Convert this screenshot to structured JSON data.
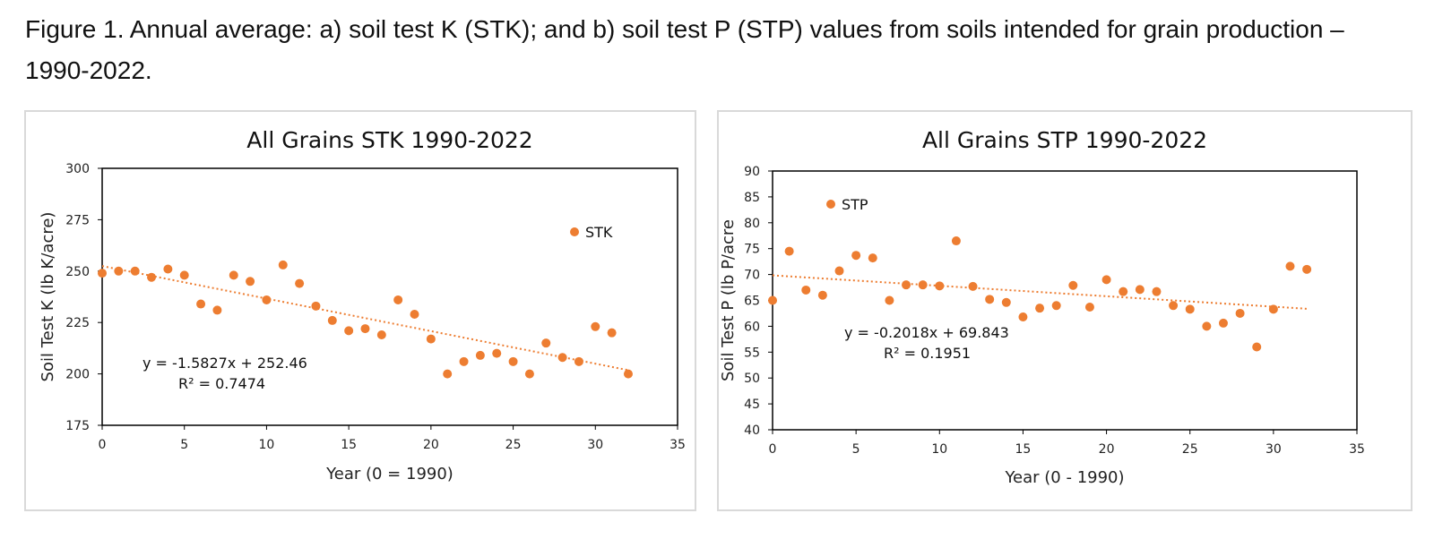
{
  "caption": "Figure 1. Annual average: a) soil test K (STK); and b) soil test P (STP) values from soils intended for grain production – 1990-2022.",
  "colors": {
    "marker": "#ED7D31",
    "axis": "#000000",
    "panel_border": "#d9d9d9"
  },
  "chart_data": [
    {
      "type": "scatter",
      "title": "All Grains STK 1990-2022",
      "xlabel": "Year (0 = 1990)",
      "ylabel": "Soil Test K (lb K/acre)",
      "xlim": [
        0,
        35
      ],
      "ylim": [
        175,
        300
      ],
      "xticks": [
        0,
        5,
        10,
        15,
        20,
        25,
        30,
        35
      ],
      "yticks": [
        175,
        200,
        225,
        250,
        275,
        300
      ],
      "legend": "top-right",
      "grid": false,
      "series": [
        {
          "name": "STK",
          "x": [
            0,
            1,
            2,
            3,
            4,
            5,
            6,
            7,
            8,
            9,
            10,
            11,
            12,
            13,
            14,
            15,
            16,
            17,
            18,
            19,
            20,
            21,
            22,
            23,
            24,
            25,
            26,
            27,
            28,
            29,
            30,
            31,
            32
          ],
          "y": [
            249,
            250,
            250,
            247,
            251,
            248,
            234,
            231,
            248,
            245,
            236,
            253,
            244,
            233,
            226,
            221,
            222,
            219,
            236,
            229,
            217,
            200,
            206,
            209,
            210,
            206,
            200,
            215,
            208,
            206,
            223,
            220,
            200
          ]
        }
      ],
      "trendline": {
        "type": "linear",
        "slope": -1.5827,
        "intercept": 252.46,
        "equation": "y = -1.5827x + 252.46",
        "r2": "R² = 0.7474"
      }
    },
    {
      "type": "scatter",
      "title": "All Grains STP 1990-2022",
      "xlabel": "Year (0 - 1990)",
      "ylabel": "Soil Test P (lb P/acre",
      "xlim": [
        0,
        35
      ],
      "ylim": [
        40,
        90
      ],
      "xticks": [
        0,
        5,
        10,
        15,
        20,
        25,
        30,
        35
      ],
      "yticks": [
        40,
        45,
        50,
        55,
        60,
        65,
        70,
        75,
        80,
        85,
        90
      ],
      "legend": "top-left",
      "grid": false,
      "series": [
        {
          "name": "STP",
          "x": [
            0,
            1,
            2,
            3,
            4,
            5,
            6,
            7,
            8,
            9,
            10,
            11,
            12,
            13,
            14,
            15,
            16,
            17,
            18,
            19,
            20,
            21,
            22,
            23,
            24,
            25,
            26,
            27,
            28,
            29,
            30,
            31,
            32
          ],
          "y": [
            65,
            74.5,
            67,
            66,
            70.7,
            73.7,
            73.2,
            65,
            68,
            68,
            67.8,
            76.5,
            67.7,
            65.2,
            64.6,
            61.8,
            63.5,
            64,
            67.9,
            63.7,
            69,
            66.7,
            67.1,
            66.7,
            64,
            63.3,
            60,
            60.6,
            62.5,
            56,
            63.3,
            71.6,
            71
          ]
        }
      ],
      "trendline": {
        "type": "linear",
        "slope": -0.2018,
        "intercept": 69.843,
        "equation": "y = -0.2018x + 69.843",
        "r2": "R² = 0.1951"
      }
    }
  ]
}
